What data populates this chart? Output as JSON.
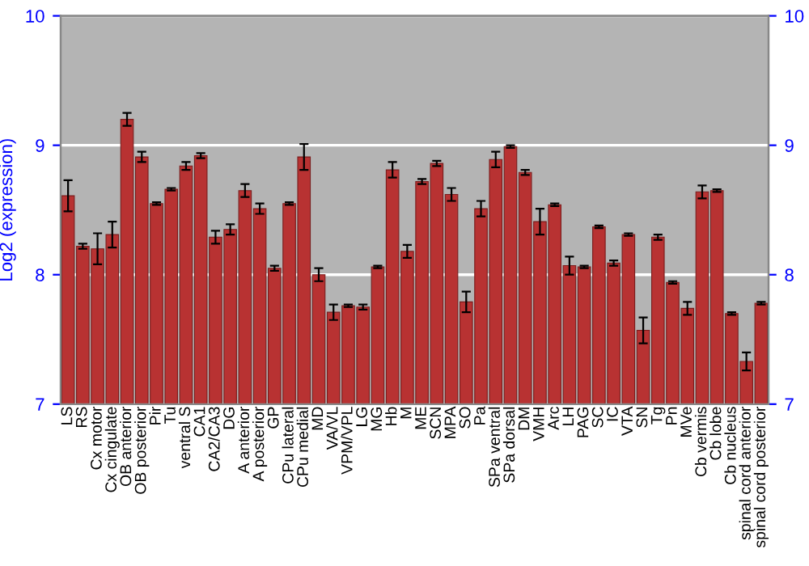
{
  "chart_data": {
    "type": "bar",
    "ylabel": "Log2 (expression)",
    "categories": [
      "LS",
      "RS",
      "Cx motor",
      "Cx cingulate",
      "OB anterior",
      "OB posterior",
      "Pir",
      "Tu",
      "ventral S",
      "CA1",
      "CA2/CA3",
      "DG",
      "A anterior",
      "A posterior",
      "GP",
      "CPu lateral",
      "CPu medial",
      "MD",
      "VA/VL",
      "VPM/VPL",
      "LG",
      "MG",
      "Hb",
      "M",
      "ME",
      "SCN",
      "MPA",
      "SO",
      "Pa",
      "SPa ventral",
      "SPa dorsal",
      "DM",
      "VMH",
      "Arc",
      "LH",
      "PAG",
      "SC",
      "IC",
      "VTA",
      "SN",
      "Tg",
      "Pn",
      "MVe",
      "Cb vermis",
      "Cb lobe",
      "Cb nucleus",
      "spinal cord anterior",
      "spinal cord posterior"
    ],
    "series": [
      {
        "color": "#b83232",
        "values": [
          8.61,
          8.22,
          8.2,
          8.31,
          9.2,
          8.91,
          8.55,
          8.66,
          8.84,
          8.92,
          8.29,
          8.35,
          8.65,
          8.51,
          8.05,
          8.55,
          8.91,
          8.0,
          7.71,
          7.76,
          7.75,
          8.06,
          8.81,
          8.18,
          8.72,
          8.86,
          8.62,
          7.79,
          8.51,
          8.89,
          8.99,
          8.79,
          8.41,
          8.54,
          8.07,
          8.06,
          8.37,
          8.09,
          8.31,
          7.57,
          8.29,
          7.94,
          7.74,
          8.64,
          8.65,
          7.7,
          7.33,
          7.78
        ],
        "errors": [
          0.12,
          0.02,
          0.12,
          0.1,
          0.05,
          0.04,
          0.01,
          0.01,
          0.03,
          0.02,
          0.05,
          0.04,
          0.05,
          0.04,
          0.02,
          0.01,
          0.1,
          0.05,
          0.06,
          0.01,
          0.02,
          0.01,
          0.06,
          0.05,
          0.02,
          0.02,
          0.05,
          0.08,
          0.06,
          0.06,
          0.01,
          0.02,
          0.1,
          0.01,
          0.07,
          0.01,
          0.01,
          0.02,
          0.01,
          0.1,
          0.02,
          0.01,
          0.05,
          0.05,
          0.01,
          0.01,
          0.07,
          0.01
        ]
      }
    ],
    "ylim": [
      7,
      10
    ],
    "yticks": [
      7,
      8,
      9,
      10
    ],
    "y2lim": [
      7,
      10
    ],
    "y2ticks": [
      7,
      8,
      9,
      10
    ],
    "grid": "y",
    "legend": false
  }
}
